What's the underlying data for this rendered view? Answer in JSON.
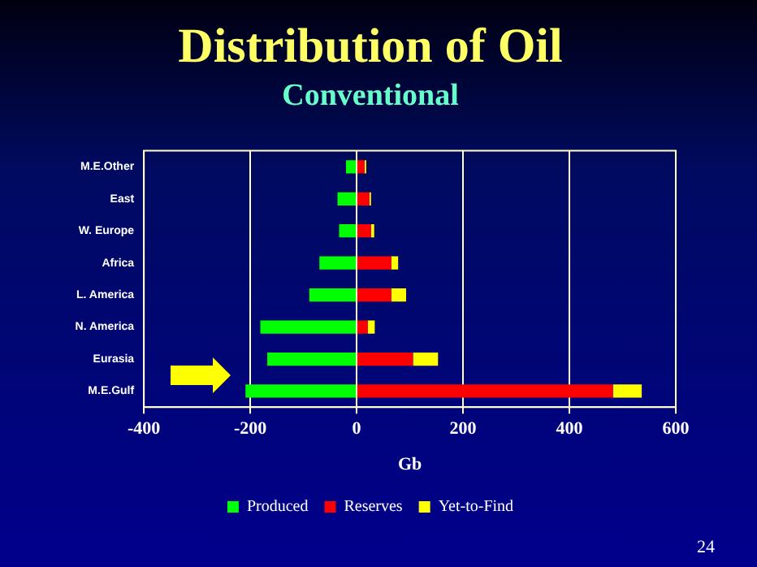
{
  "chart_data": {
    "type": "bar",
    "orientation": "horizontal",
    "stacked": true,
    "title": "Distribution of Oil",
    "subtitle": "Conventional",
    "xlabel": "Gb",
    "categories": [
      "M.E.Other",
      "East",
      "W. Europe",
      "Africa",
      "L. America",
      "N. America",
      "Eurasia",
      "M.E.Gulf"
    ],
    "series": [
      {
        "name": "Produced",
        "color": "#00ff00",
        "values": [
          -20,
          -36,
          -33,
          -70,
          -89,
          -181,
          -168,
          -209
        ]
      },
      {
        "name": "Reserves",
        "color": "#ff0000",
        "values": [
          15,
          24,
          27,
          65,
          65,
          21,
          106,
          482
        ]
      },
      {
        "name": "Yet-to-Find",
        "color": "#ffff00",
        "values": [
          3,
          3,
          6,
          13,
          28,
          13,
          47,
          54
        ]
      }
    ],
    "xlim": [
      -400,
      600
    ],
    "xticks": [
      -400,
      -200,
      0,
      200,
      400,
      600
    ],
    "grid": "x",
    "legend": "bottom",
    "annotations": [
      "24"
    ]
  }
}
